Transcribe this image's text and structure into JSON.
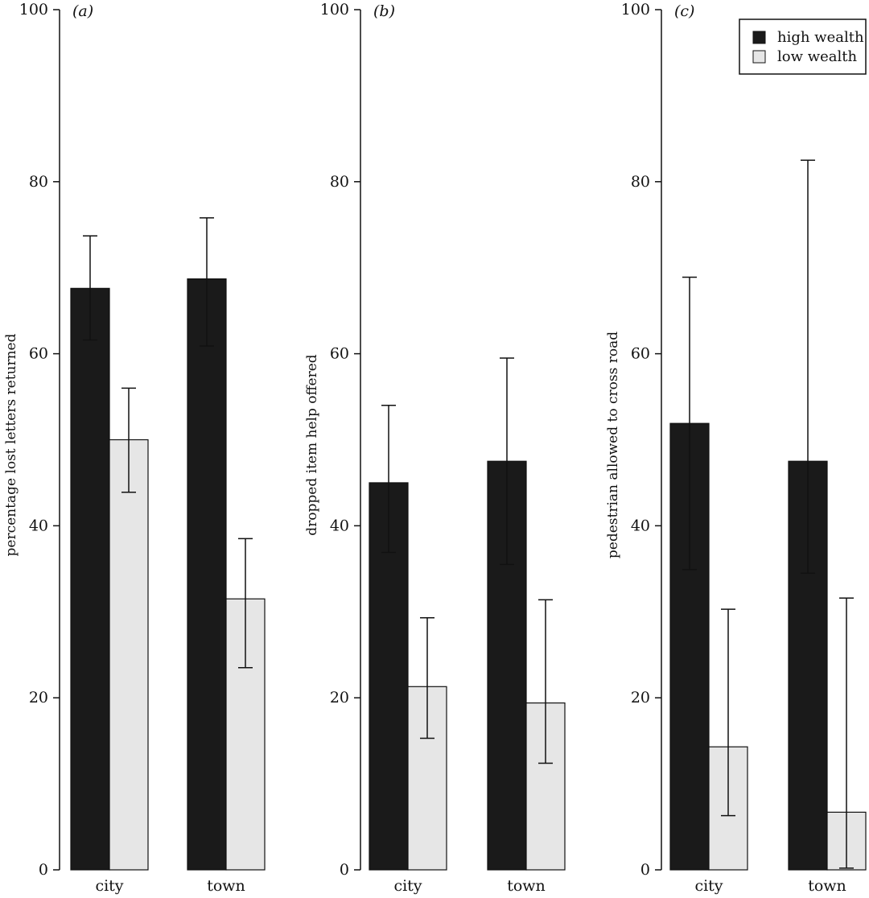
{
  "chart_data": [
    {
      "type": "bar",
      "panel_label": "(a)",
      "ylabel": "percentage lost letters returned",
      "categories": [
        "city",
        "town"
      ],
      "ylim": [
        0,
        100
      ],
      "yticks": [
        "0",
        "20",
        "40",
        "60",
        "80",
        "100"
      ],
      "series": [
        {
          "name": "high wealth",
          "values": [
            67.6,
            68.7
          ],
          "err_low": [
            61.6,
            60.9
          ],
          "err_high": [
            73.7,
            75.8
          ]
        },
        {
          "name": "low wealth",
          "values": [
            50.0,
            31.5
          ],
          "err_low": [
            43.9,
            23.5
          ],
          "err_high": [
            56.0,
            38.5
          ]
        }
      ]
    },
    {
      "type": "bar",
      "panel_label": "(b)",
      "ylabel": "dropped item help offered",
      "categories": [
        "city",
        "town"
      ],
      "ylim": [
        0,
        100
      ],
      "yticks": [
        "0",
        "20",
        "40",
        "60",
        "80",
        "100"
      ],
      "series": [
        {
          "name": "high wealth",
          "values": [
            45.0,
            47.5
          ],
          "err_low": [
            36.9,
            35.5
          ],
          "err_high": [
            54.0,
            59.5
          ]
        },
        {
          "name": "low wealth",
          "values": [
            21.3,
            19.4
          ],
          "err_low": [
            15.3,
            12.4
          ],
          "err_high": [
            29.3,
            31.4
          ]
        }
      ]
    },
    {
      "type": "bar",
      "panel_label": "(c)",
      "ylabel": "pedestrian allowed to cross road",
      "categories": [
        "city",
        "town"
      ],
      "ylim": [
        0,
        100
      ],
      "yticks": [
        "0",
        "20",
        "40",
        "60",
        "80",
        "100"
      ],
      "series": [
        {
          "name": "high wealth",
          "values": [
            51.9,
            47.5
          ],
          "err_low": [
            34.9,
            34.5
          ],
          "err_high": [
            68.9,
            82.5
          ]
        },
        {
          "name": "low wealth",
          "values": [
            14.3,
            6.7
          ],
          "err_low": [
            6.3,
            0.2
          ],
          "err_high": [
            30.3,
            31.6
          ]
        }
      ],
      "legend": {
        "position": "top-right",
        "entries": [
          {
            "label": "high wealth",
            "color": "#1a1a1a"
          },
          {
            "label": "low wealth",
            "color": "#e6e6e6"
          }
        ]
      }
    }
  ],
  "colors": {
    "high_wealth": "#1a1a1a",
    "low_wealth": "#e6e6e6",
    "axis": "#111111"
  }
}
